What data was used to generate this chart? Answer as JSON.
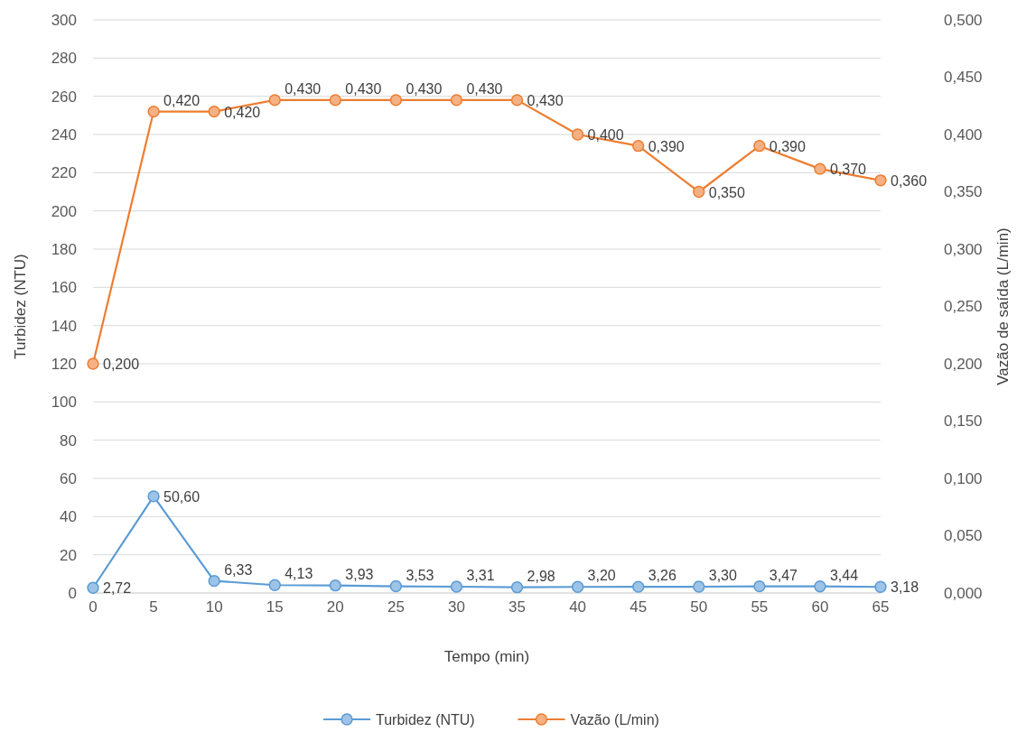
{
  "chart_data": {
    "type": "line",
    "xlabel": "Tempo (min)",
    "ylabel": "Turbidez (NTU)",
    "y2label": "Vazão de saída (L/min)",
    "categories": [
      "0",
      "5",
      "10",
      "15",
      "20",
      "25",
      "30",
      "35",
      "40",
      "45",
      "50",
      "55",
      "60",
      "65"
    ],
    "ylim": [
      0,
      300
    ],
    "yticks": [
      0,
      20,
      40,
      60,
      80,
      100,
      120,
      140,
      160,
      180,
      200,
      220,
      240,
      260,
      280,
      300
    ],
    "y2lim": [
      0,
      0.5
    ],
    "y2ticks": [
      {
        "value": 0,
        "label": "0,000"
      },
      {
        "value": 0.05,
        "label": "0,050"
      },
      {
        "value": 0.1,
        "label": "0,100"
      },
      {
        "value": 0.15,
        "label": "0,150"
      },
      {
        "value": 0.2,
        "label": "0,200"
      },
      {
        "value": 0.25,
        "label": "0,250"
      },
      {
        "value": 0.3,
        "label": "0,300"
      },
      {
        "value": 0.35,
        "label": "0,350"
      },
      {
        "value": 0.4,
        "label": "0,400"
      },
      {
        "value": 0.45,
        "label": "0,450"
      },
      {
        "value": 0.5,
        "label": "0,500"
      }
    ],
    "grid": "y",
    "legend": "bottom",
    "marker": "circle",
    "series": [
      {
        "name": "Turbidez (NTU)",
        "color": "#5b9bd5",
        "values": [
          2.72,
          50.6,
          6.33,
          4.13,
          3.93,
          3.53,
          3.31,
          2.98,
          3.2,
          3.26,
          3.3,
          3.47,
          3.44,
          3.18
        ],
        "value_labels": [
          "2,72",
          "50,60",
          "6,33",
          "4,13",
          "3,93",
          "3,53",
          "3,31",
          "2,98",
          "3,20",
          "3,26",
          "3,30",
          "3,47",
          "3,44",
          "3,18"
        ]
      },
      {
        "name": "Vazão (L/min)",
        "color": "#ed7d31",
        "axis": "y2",
        "values": [
          0.2,
          0.42,
          0.42,
          0.43,
          0.43,
          0.43,
          0.43,
          0.43,
          0.4,
          0.39,
          0.35,
          0.39,
          0.37,
          0.36
        ],
        "value_labels": [
          "0,200",
          "0,420",
          "0,420",
          "0,430",
          "0,430",
          "0,430",
          "0,430",
          "0,430",
          "0,400",
          "0,390",
          "0,350",
          "0,390",
          "0,370",
          "0,360"
        ]
      }
    ]
  }
}
